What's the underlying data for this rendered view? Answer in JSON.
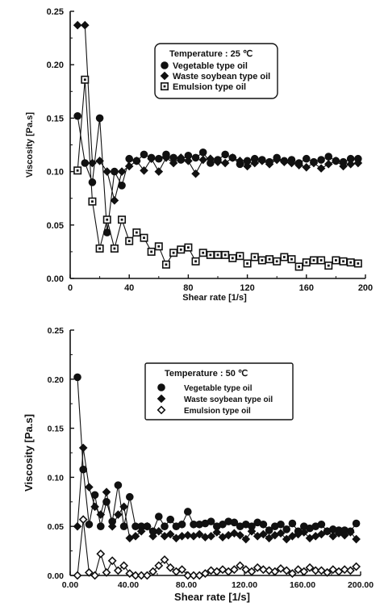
{
  "chart_data": [
    {
      "type": "line",
      "legend_title": "Temperature : 25 ℃",
      "xlabel": "Shear rate [1/s]",
      "ylabel": "Viscosity [Pa.s]",
      "xlim": [
        0,
        200
      ],
      "ylim": [
        0,
        0.25
      ],
      "xticks": [
        "0",
        "40",
        "80",
        "120",
        "160",
        "200"
      ],
      "yticks": [
        "0.00",
        "0.05",
        "0.10",
        "0.15",
        "0.20",
        "0.25"
      ],
      "legend_position": "top-right",
      "series": [
        {
          "name": "Vegetable type oil",
          "marker": "circle-filled",
          "x": [
            5,
            10,
            15,
            20,
            25,
            30,
            35,
            40,
            45,
            50,
            55,
            60,
            65,
            70,
            75,
            80,
            85,
            90,
            95,
            100,
            105,
            110,
            115,
            120,
            125,
            130,
            135,
            140,
            145,
            150,
            155,
            160,
            165,
            170,
            175,
            180,
            185,
            190,
            195
          ],
          "y": [
            0.152,
            0.108,
            0.09,
            0.15,
            0.043,
            0.1,
            0.087,
            0.112,
            0.11,
            0.116,
            0.113,
            0.112,
            0.116,
            0.113,
            0.111,
            0.115,
            0.113,
            0.118,
            0.108,
            0.111,
            0.116,
            0.113,
            0.107,
            0.11,
            0.112,
            0.111,
            0.109,
            0.113,
            0.11,
            0.111,
            0.108,
            0.112,
            0.109,
            0.111,
            0.114,
            0.11,
            0.109,
            0.112,
            0.112
          ]
        },
        {
          "name": "Waste soybean type oil",
          "marker": "diamond-filled",
          "x": [
            5,
            10,
            15,
            20,
            25,
            30,
            35,
            40,
            45,
            50,
            55,
            60,
            65,
            70,
            75,
            80,
            85,
            90,
            95,
            100,
            105,
            110,
            115,
            120,
            125,
            130,
            135,
            140,
            145,
            150,
            155,
            160,
            165,
            170,
            175,
            180,
            185,
            190,
            195
          ],
          "y": [
            0.237,
            0.237,
            0.108,
            0.11,
            0.1,
            0.073,
            0.1,
            0.105,
            0.11,
            0.101,
            0.112,
            0.1,
            0.113,
            0.108,
            0.113,
            0.11,
            0.098,
            0.111,
            0.112,
            0.109,
            0.108,
            0.113,
            0.11,
            0.105,
            0.108,
            0.11,
            0.107,
            0.111,
            0.109,
            0.108,
            0.106,
            0.104,
            0.108,
            0.103,
            0.107,
            0.11,
            0.105,
            0.107,
            0.108
          ]
        },
        {
          "name": "Emulsion type oil",
          "marker": "square-open",
          "x": [
            5,
            10,
            15,
            20,
            25,
            30,
            35,
            40,
            45,
            50,
            55,
            60,
            65,
            70,
            75,
            80,
            85,
            90,
            95,
            100,
            105,
            110,
            115,
            120,
            125,
            130,
            135,
            140,
            145,
            150,
            155,
            160,
            165,
            170,
            175,
            180,
            185,
            190,
            195
          ],
          "y": [
            0.101,
            0.186,
            0.072,
            0.028,
            0.055,
            0.028,
            0.055,
            0.035,
            0.043,
            0.038,
            0.025,
            0.03,
            0.013,
            0.024,
            0.027,
            0.029,
            0.016,
            0.024,
            0.022,
            0.022,
            0.022,
            0.019,
            0.021,
            0.014,
            0.02,
            0.017,
            0.018,
            0.016,
            0.02,
            0.018,
            0.011,
            0.015,
            0.017,
            0.017,
            0.012,
            0.017,
            0.016,
            0.015,
            0.014
          ]
        }
      ]
    },
    {
      "type": "line",
      "legend_title": "Temperature : 50 ℃",
      "xlabel": "Shear rate [1/s]",
      "ylabel": "Viscosity [Pa.s]",
      "xlim": [
        0,
        200
      ],
      "ylim": [
        0,
        0.25
      ],
      "xticks": [
        "0.00",
        "40.00",
        "80.00",
        "120.00",
        "160.00",
        "200.00"
      ],
      "yticks": [
        "0.00",
        "0.05",
        "0.10",
        "0.15",
        "0.20",
        "0.25"
      ],
      "legend_position": "top-right",
      "series": [
        {
          "name": "Vegetable type oil",
          "marker": "circle-filled",
          "x": [
            5,
            9,
            13,
            17,
            21,
            25,
            29,
            33,
            37,
            41,
            45,
            49,
            53,
            57,
            61,
            65,
            69,
            73,
            77,
            81,
            85,
            89,
            93,
            97,
            101,
            105,
            109,
            113,
            117,
            121,
            125,
            129,
            133,
            137,
            141,
            145,
            149,
            153,
            157,
            161,
            165,
            169,
            173,
            177,
            181,
            185,
            189,
            193,
            197
          ],
          "y": [
            0.202,
            0.108,
            0.052,
            0.082,
            0.05,
            0.075,
            0.055,
            0.092,
            0.05,
            0.08,
            0.05,
            0.05,
            0.05,
            0.045,
            0.06,
            0.05,
            0.057,
            0.05,
            0.052,
            0.065,
            0.052,
            0.052,
            0.053,
            0.055,
            0.05,
            0.052,
            0.055,
            0.054,
            0.05,
            0.052,
            0.05,
            0.054,
            0.052,
            0.046,
            0.05,
            0.052,
            0.047,
            0.053,
            0.045,
            0.05,
            0.048,
            0.05,
            0.052,
            0.045,
            0.047,
            0.046,
            0.046,
            0.045,
            0.053
          ]
        },
        {
          "name": "Waste soybean type oil",
          "marker": "diamond-filled",
          "x": [
            5,
            9,
            13,
            17,
            21,
            25,
            29,
            33,
            37,
            41,
            45,
            49,
            53,
            57,
            61,
            65,
            69,
            73,
            77,
            81,
            85,
            89,
            93,
            97,
            101,
            105,
            109,
            113,
            117,
            121,
            125,
            129,
            133,
            137,
            141,
            145,
            149,
            153,
            157,
            161,
            165,
            169,
            173,
            177,
            181,
            185,
            189,
            193,
            197
          ],
          "y": [
            0.05,
            0.13,
            0.09,
            0.07,
            0.062,
            0.085,
            0.05,
            0.062,
            0.07,
            0.038,
            0.04,
            0.045,
            0.05,
            0.04,
            0.045,
            0.04,
            0.042,
            0.038,
            0.04,
            0.041,
            0.04,
            0.042,
            0.039,
            0.04,
            0.044,
            0.039,
            0.041,
            0.043,
            0.041,
            0.037,
            0.045,
            0.04,
            0.042,
            0.038,
            0.041,
            0.043,
            0.037,
            0.04,
            0.042,
            0.044,
            0.038,
            0.04,
            0.042,
            0.045,
            0.04,
            0.043,
            0.041,
            0.044,
            0.037
          ]
        },
        {
          "name": "Emulsion type oil",
          "marker": "diamond-open",
          "x": [
            5,
            9,
            13,
            17,
            21,
            25,
            29,
            33,
            37,
            41,
            45,
            49,
            53,
            57,
            61,
            65,
            69,
            73,
            77,
            81,
            85,
            89,
            93,
            97,
            101,
            105,
            109,
            113,
            117,
            121,
            125,
            129,
            133,
            137,
            141,
            145,
            149,
            153,
            157,
            161,
            165,
            169,
            173,
            177,
            181,
            185,
            189,
            193,
            197
          ],
          "y": [
            0.0,
            0.057,
            0.003,
            0.0,
            0.022,
            0.003,
            0.015,
            0.005,
            0.01,
            0.002,
            0.0,
            0.0,
            0.0,
            0.004,
            0.01,
            0.016,
            0.008,
            0.004,
            0.006,
            0.0,
            0.0,
            0.0,
            0.002,
            0.005,
            0.004,
            0.006,
            0.004,
            0.006,
            0.01,
            0.006,
            0.004,
            0.008,
            0.006,
            0.005,
            0.004,
            0.007,
            0.005,
            0.002,
            0.006,
            0.004,
            0.008,
            0.005,
            0.005,
            0.003,
            0.006,
            0.004,
            0.006,
            0.005,
            0.009
          ]
        }
      ]
    }
  ]
}
